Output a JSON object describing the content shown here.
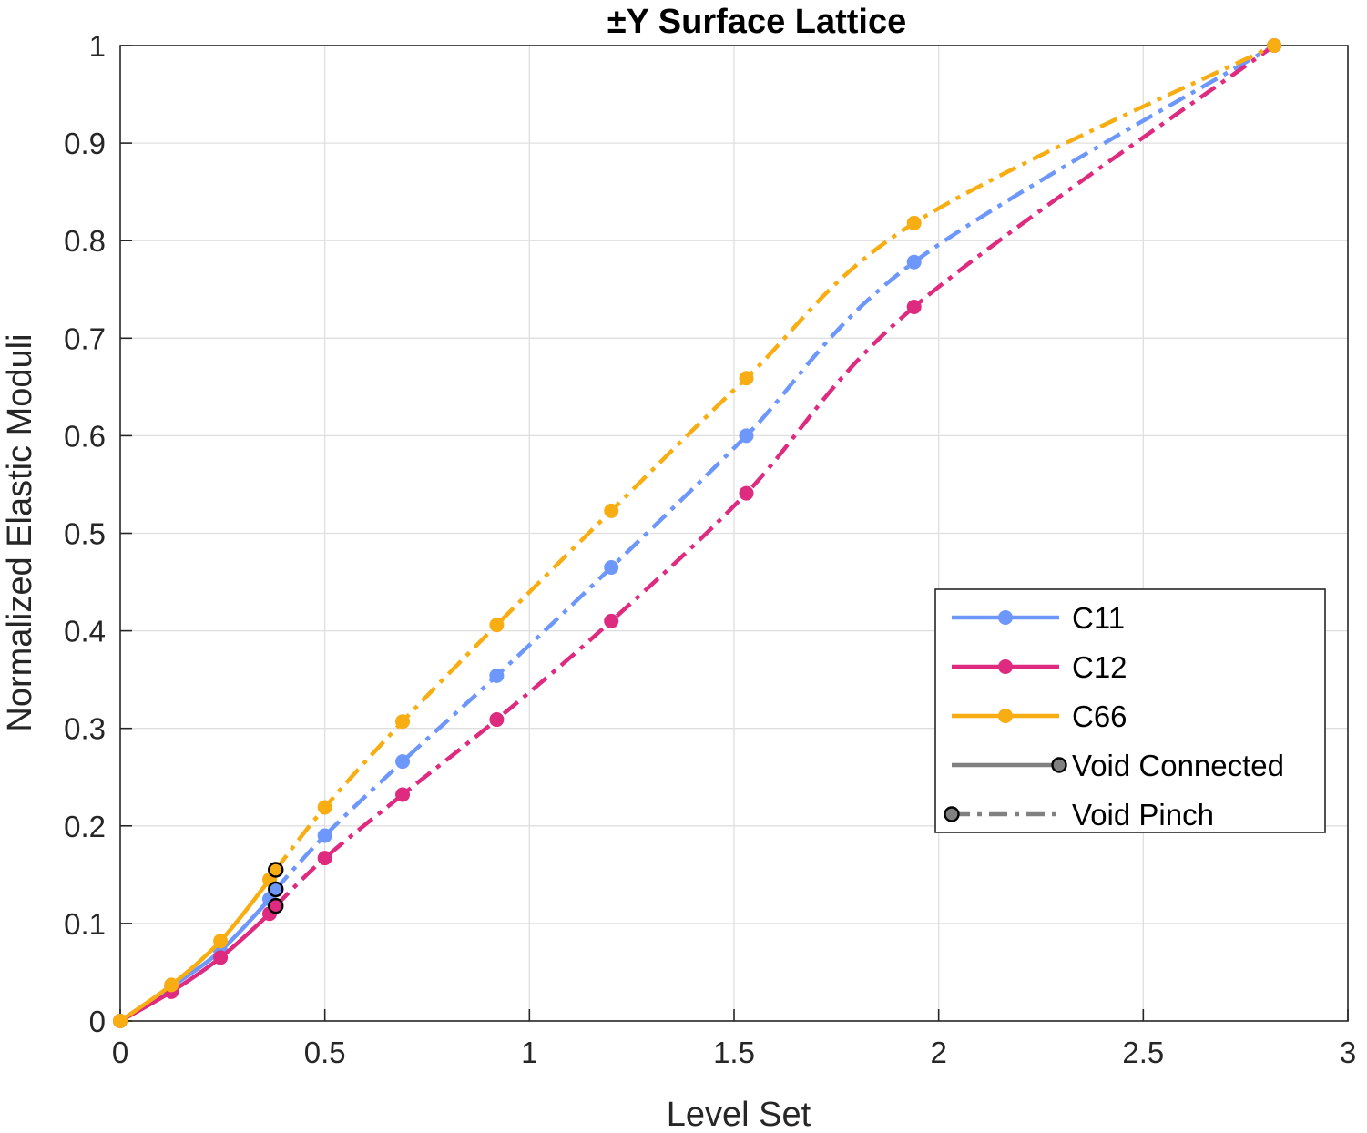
{
  "chart_data": {
    "type": "line",
    "title": "±Y Surface Lattice",
    "xlabel": "Level Set",
    "ylabel": "Normalized Elastic Moduli",
    "xlim": [
      0,
      3
    ],
    "ylim": [
      0,
      1
    ],
    "xticks": [
      0,
      0.5,
      1,
      1.5,
      2,
      2.5,
      3
    ],
    "xtick_labels": [
      "0",
      "0.5",
      "1",
      "1.5",
      "2",
      "2.5",
      "3"
    ],
    "yticks": [
      0,
      0.1,
      0.2,
      0.3,
      0.4,
      0.5,
      0.6,
      0.7,
      0.8,
      0.9,
      1
    ],
    "ytick_labels": [
      "0",
      "0.1",
      "0.2",
      "0.3",
      "0.4",
      "0.5",
      "0.6",
      "0.7",
      "0.8",
      "0.9",
      "1"
    ],
    "grid": true,
    "legend_position": "lower-right",
    "transition_x": 0.38,
    "series": [
      {
        "name": "C11",
        "color": "#6D97FB",
        "connected": {
          "x": [
            0,
            0.125,
            0.245,
            0.365
          ],
          "y": [
            0,
            0.035,
            0.072,
            0.125
          ]
        },
        "pinch": {
          "x": [
            0.38,
            0.5,
            0.69,
            0.92,
            1.2,
            1.53,
            1.94,
            2.82
          ],
          "y": [
            0.135,
            0.19,
            0.266,
            0.354,
            0.465,
            0.6,
            0.778,
            1.0
          ]
        },
        "transition_y": 0.135
      },
      {
        "name": "C12",
        "color": "#DE2A7F",
        "connected": {
          "x": [
            0,
            0.125,
            0.245,
            0.365
          ],
          "y": [
            0,
            0.03,
            0.065,
            0.11
          ]
        },
        "pinch": {
          "x": [
            0.38,
            0.5,
            0.69,
            0.92,
            1.2,
            1.53,
            1.94,
            2.82
          ],
          "y": [
            0.118,
            0.167,
            0.232,
            0.309,
            0.41,
            0.541,
            0.732,
            1.0
          ]
        },
        "transition_y": 0.118
      },
      {
        "name": "C66",
        "color": "#F8AE13",
        "connected": {
          "x": [
            0,
            0.125,
            0.245,
            0.365
          ],
          "y": [
            0,
            0.037,
            0.082,
            0.145
          ]
        },
        "pinch": {
          "x": [
            0.38,
            0.5,
            0.69,
            0.92,
            1.2,
            1.53,
            1.94,
            2.82
          ],
          "y": [
            0.155,
            0.219,
            0.307,
            0.406,
            0.523,
            0.659,
            0.818,
            1.0
          ]
        },
        "transition_y": 0.155
      }
    ],
    "legend": {
      "entries": [
        {
          "label": "C11",
          "color": "#6D97FB",
          "style": "solid-dot"
        },
        {
          "label": "C12",
          "color": "#DE2A7F",
          "style": "solid-dot"
        },
        {
          "label": "C66",
          "color": "#F8AE13",
          "style": "solid-dot"
        },
        {
          "label": "Void Connected",
          "color": "#808080",
          "style": "solid-end-marker"
        },
        {
          "label": "Void Pinch",
          "color": "#808080",
          "style": "dashdot-start-marker"
        }
      ]
    }
  }
}
